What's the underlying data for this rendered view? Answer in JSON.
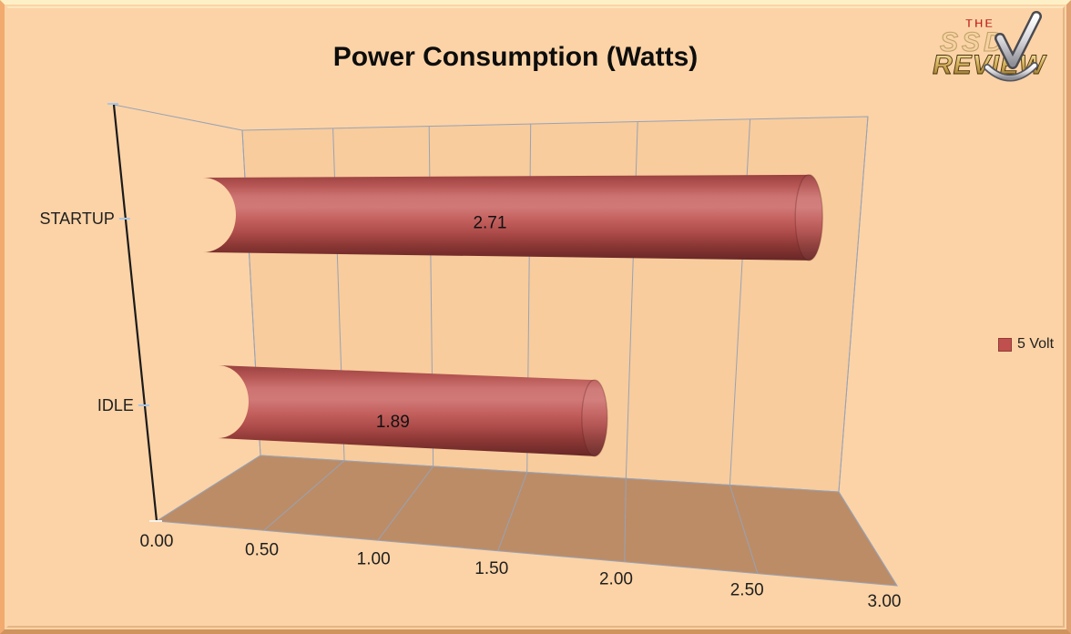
{
  "title": "Power Consumption (Watts)",
  "logo": {
    "the": "THE",
    "ssd": "SSD",
    "review": "REVIEW"
  },
  "legend": {
    "items": [
      {
        "label": "5 Volt",
        "color": "#c0504d"
      }
    ]
  },
  "chart_data": {
    "type": "bar",
    "subtype": "3d-horizontal-cylinder",
    "title": "Power Consumption (Watts)",
    "categories": [
      "STARTUP",
      "IDLE"
    ],
    "series": [
      {
        "name": "5 Volt",
        "color": "#c0504d",
        "values": [
          2.71,
          1.89
        ]
      }
    ],
    "data_labels": [
      "2.71",
      "1.89"
    ],
    "xlim": [
      0,
      3
    ],
    "xticks": [
      "0.00",
      "0.50",
      "1.00",
      "1.50",
      "2.00",
      "2.50",
      "3.00"
    ],
    "xlabel": "",
    "ylabel": "",
    "grid": true,
    "legend_position": "right"
  }
}
